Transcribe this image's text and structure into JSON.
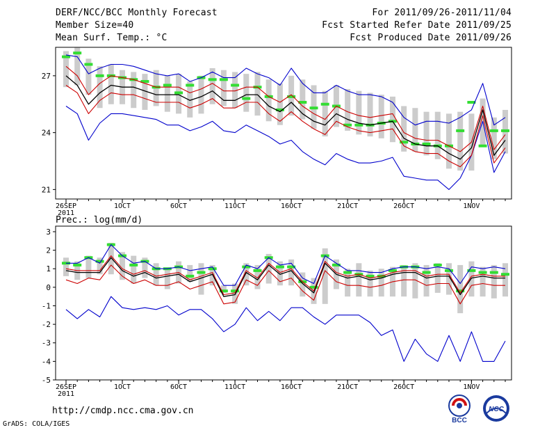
{
  "header": {
    "title": "DERF/NCC/BCC Monthly Forecast",
    "member_size": "Member Size=40",
    "variable": "Mean Surf. Temp.: °C",
    "forecast_period": "For 2011/09/26-2011/11/04",
    "fcst_started": "Fcst Started Refer Date 2011/09/25",
    "fcst_produced": "Fcst Produced Date 2011/09/26"
  },
  "footer": {
    "url": "http://cmdp.ncc.cma.gov.cn",
    "credit": "GrADS: COLA/IGES",
    "logo_bcc": "BCC",
    "logo_ncc": "NCC"
  },
  "colors": {
    "box": "#cccccc",
    "green": "#33dd33",
    "mean": "#000000",
    "inner": "#cc0000",
    "outer": "#0000cc"
  },
  "chart_data": [
    {
      "type": "line",
      "title": "Mean Surf. Temp.: °C",
      "x_tick_labels": [
        "26SEP",
        "1OCT",
        "6OCT",
        "11OCT",
        "16OCT",
        "21OCT",
        "26OCT",
        "1NOV"
      ],
      "x_tick_days": [
        1,
        6,
        11,
        16,
        21,
        26,
        31,
        37
      ],
      "year_label": "2011",
      "xlim": [
        1,
        40
      ],
      "ylim": [
        20.5,
        28.5
      ],
      "y_ticks": [
        21,
        24,
        27
      ],
      "series": [
        {
          "name": "box_top",
          "values": [
            28.3,
            28.5,
            27.9,
            27.5,
            27.6,
            27.3,
            27.2,
            27.1,
            27.3,
            27.0,
            27.1,
            26.7,
            27.0,
            27.4,
            27.3,
            27.2,
            27.1,
            27.2,
            26.8,
            26.6,
            27.0,
            26.8,
            26.5,
            26.2,
            26.5,
            26.3,
            26.2,
            26.1,
            26.0,
            25.9,
            25.4,
            25.3,
            25.1,
            25.1,
            25.0,
            25.1,
            25.0,
            25.8,
            24.8,
            25.2
          ]
        },
        {
          "name": "box_bottom",
          "values": [
            26.4,
            26.5,
            26.0,
            25.3,
            25.5,
            25.5,
            25.3,
            25.2,
            25.4,
            25.1,
            25.0,
            24.8,
            25.0,
            25.5,
            25.4,
            25.3,
            25.1,
            24.9,
            24.6,
            24.4,
            24.9,
            24.7,
            24.2,
            23.8,
            24.3,
            24.1,
            23.9,
            23.8,
            23.7,
            23.5,
            23.0,
            23.0,
            22.8,
            22.6,
            22.1,
            22.0,
            22.0,
            23.3,
            22.6,
            22.9
          ]
        },
        {
          "name": "green_marks",
          "values": [
            28.0,
            28.2,
            27.6,
            27.0,
            27.0,
            26.9,
            26.8,
            26.7,
            26.4,
            26.5,
            26.1,
            26.5,
            26.9,
            26.8,
            26.8,
            26.5,
            25.8,
            26.4,
            25.9,
            25.2,
            25.9,
            25.6,
            25.3,
            25.5,
            25.4,
            24.4,
            24.4,
            24.4,
            24.5,
            24.6,
            23.5,
            23.4,
            23.4,
            23.3,
            23.3,
            24.1,
            25.6,
            23.3,
            24.1,
            24.1
          ]
        },
        {
          "name": "ensemble_mean",
          "values": [
            27.0,
            26.5,
            25.5,
            26.1,
            26.5,
            26.4,
            26.4,
            26.2,
            26.0,
            26.0,
            26.0,
            25.7,
            25.9,
            26.2,
            25.7,
            25.7,
            26.0,
            26.0,
            25.4,
            25.1,
            25.6,
            25.0,
            24.6,
            24.4,
            25.0,
            24.7,
            24.5,
            24.4,
            24.5,
            24.6,
            23.7,
            23.4,
            23.3,
            23.3,
            22.9,
            22.6,
            23.2,
            25.2,
            22.8,
            23.6
          ]
        },
        {
          "name": "upper_inner",
          "values": [
            27.5,
            27.0,
            26.0,
            26.6,
            27.0,
            26.9,
            26.8,
            26.6,
            26.4,
            26.4,
            26.4,
            26.1,
            26.3,
            26.6,
            26.2,
            26.2,
            26.4,
            26.4,
            25.9,
            25.6,
            26.0,
            25.4,
            25.0,
            24.7,
            25.4,
            25.1,
            24.9,
            24.8,
            24.9,
            25.0,
            24.0,
            23.7,
            23.6,
            23.6,
            23.3,
            23.0,
            23.5,
            25.4,
            23.1,
            23.9
          ]
        },
        {
          "name": "lower_inner",
          "values": [
            26.5,
            26.1,
            25.0,
            25.7,
            26.1,
            26.0,
            26.0,
            25.8,
            25.6,
            25.6,
            25.6,
            25.3,
            25.5,
            25.8,
            25.3,
            25.3,
            25.6,
            25.6,
            25.0,
            24.6,
            25.1,
            24.6,
            24.2,
            23.9,
            24.6,
            24.3,
            24.1,
            24.0,
            24.1,
            24.2,
            23.3,
            23.0,
            22.9,
            22.9,
            22.5,
            22.2,
            22.8,
            24.9,
            22.4,
            23.2
          ]
        },
        {
          "name": "upper_outer",
          "values": [
            28.1,
            28.0,
            27.1,
            27.4,
            27.6,
            27.6,
            27.5,
            27.3,
            27.1,
            27.0,
            27.1,
            26.7,
            26.9,
            27.2,
            26.9,
            26.9,
            27.4,
            27.1,
            26.9,
            26.5,
            27.4,
            26.6,
            26.1,
            26.1,
            26.5,
            26.2,
            26.0,
            26.0,
            25.9,
            25.6,
            24.8,
            24.4,
            24.6,
            24.6,
            24.5,
            24.8,
            25.2,
            26.6,
            24.4,
            24.8
          ]
        },
        {
          "name": "lower_outer",
          "values": [
            25.4,
            25.0,
            23.6,
            24.5,
            25.0,
            25.0,
            24.9,
            24.8,
            24.7,
            24.4,
            24.4,
            24.1,
            24.3,
            24.6,
            24.1,
            24.0,
            24.4,
            24.1,
            23.8,
            23.4,
            23.6,
            23.0,
            22.6,
            22.3,
            22.9,
            22.6,
            22.4,
            22.4,
            22.5,
            22.7,
            21.7,
            21.6,
            21.5,
            21.5,
            21.0,
            21.6,
            22.8,
            24.6,
            21.9,
            23.0
          ]
        }
      ]
    },
    {
      "type": "line",
      "title": "Prec.: log(mm/d)",
      "x_tick_labels": [
        "26SEP",
        "1OCT",
        "6OCT",
        "11OCT",
        "16OCT",
        "21OCT",
        "26OCT",
        "1NOV"
      ],
      "x_tick_days": [
        1,
        6,
        11,
        16,
        21,
        26,
        31,
        37
      ],
      "year_label": "2011",
      "xlim": [
        1,
        40
      ],
      "ylim": [
        -5,
        3.3
      ],
      "y_ticks": [
        -5,
        -4,
        -3,
        -2,
        -1,
        0,
        1,
        2,
        3
      ],
      "series": [
        {
          "name": "box_top",
          "values": [
            1.6,
            1.4,
            1.7,
            1.6,
            2.4,
            1.9,
            1.7,
            1.6,
            1.3,
            1.0,
            1.4,
            1.2,
            1.3,
            1.2,
            0.1,
            0.2,
            1.3,
            1.2,
            1.8,
            1.4,
            1.5,
            0.8,
            0.5,
            2.1,
            1.5,
            1.0,
            1.3,
            0.9,
            1.0,
            1.1,
            1.2,
            1.3,
            1.2,
            1.3,
            1.3,
            1.2,
            1.4,
            1.1,
            1.2,
            1.3
          ]
        },
        {
          "name": "box_bottom",
          "values": [
            0.6,
            0.4,
            0.5,
            0.7,
            0.7,
            0.4,
            0.2,
            0.5,
            0.1,
            -0.1,
            0.2,
            0.3,
            -0.4,
            0.1,
            -0.3,
            -0.9,
            0.1,
            -0.1,
            0.2,
            0.1,
            0.1,
            -0.5,
            -0.9,
            -0.9,
            -0.1,
            -0.5,
            -0.5,
            -0.5,
            -0.5,
            -0.5,
            -0.5,
            -0.6,
            -0.5,
            -0.3,
            -0.4,
            -1.4,
            -0.5,
            -0.5,
            -0.6,
            -0.5
          ]
        },
        {
          "name": "green_marks",
          "values": [
            1.3,
            1.2,
            1.6,
            1.4,
            2.3,
            1.7,
            1.2,
            1.4,
            1.0,
            1.0,
            1.1,
            0.6,
            0.8,
            1.0,
            -0.2,
            -0.2,
            1.1,
            0.9,
            1.6,
            1.1,
            1.1,
            0.3,
            0.0,
            1.7,
            1.2,
            0.8,
            0.7,
            0.6,
            0.6,
            0.9,
            1.1,
            1.1,
            0.8,
            1.2,
            0.9,
            -0.2,
            0.9,
            0.8,
            0.8,
            0.7
          ]
        },
        {
          "name": "ensemble_mean",
          "values": [
            0.9,
            0.8,
            0.8,
            0.8,
            1.6,
            0.9,
            0.6,
            0.8,
            0.5,
            0.6,
            0.7,
            0.3,
            0.5,
            0.7,
            -0.5,
            -0.4,
            0.8,
            0.4,
            1.2,
            0.7,
            0.9,
            0.2,
            -0.3,
            1.3,
            0.7,
            0.5,
            0.6,
            0.4,
            0.5,
            0.7,
            0.8,
            0.8,
            0.5,
            0.6,
            0.6,
            -0.4,
            0.5,
            0.6,
            0.5,
            0.5
          ]
        },
        {
          "name": "upper_inner",
          "values": [
            1.0,
            0.9,
            0.9,
            0.9,
            1.7,
            1.0,
            0.7,
            0.9,
            0.6,
            0.7,
            0.8,
            0.4,
            0.6,
            0.8,
            -0.4,
            -0.3,
            0.9,
            0.5,
            1.3,
            0.8,
            1.0,
            0.3,
            -0.2,
            1.4,
            0.8,
            0.6,
            0.7,
            0.5,
            0.6,
            0.8,
            0.9,
            0.9,
            0.6,
            0.7,
            0.7,
            -0.3,
            0.6,
            0.7,
            0.6,
            0.6
          ]
        },
        {
          "name": "lower_inner",
          "values": [
            0.4,
            0.2,
            0.5,
            0.4,
            1.2,
            0.6,
            0.2,
            0.4,
            0.1,
            0.1,
            0.3,
            -0.1,
            0.1,
            0.3,
            -0.9,
            -0.8,
            0.4,
            0.1,
            0.9,
            0.3,
            0.5,
            -0.2,
            -0.7,
            0.9,
            0.3,
            0.1,
            0.1,
            0.0,
            0.1,
            0.3,
            0.4,
            0.4,
            0.1,
            0.2,
            0.2,
            -0.9,
            0.1,
            0.2,
            0.1,
            0.1
          ]
        },
        {
          "name": "upper_outer",
          "values": [
            1.3,
            1.3,
            1.6,
            1.3,
            2.3,
            1.7,
            1.3,
            1.4,
            1.0,
            1.0,
            1.1,
            0.9,
            1.0,
            1.1,
            0.1,
            0.1,
            1.2,
            1.0,
            1.6,
            1.2,
            1.3,
            0.5,
            0.2,
            1.7,
            1.3,
            0.9,
            0.9,
            0.8,
            0.8,
            1.0,
            1.1,
            1.1,
            1.0,
            1.1,
            1.0,
            0.2,
            1.1,
            1.0,
            1.1,
            1.0
          ]
        },
        {
          "name": "lower_outer",
          "values": [
            -1.2,
            -1.7,
            -1.2,
            -1.6,
            -0.5,
            -1.1,
            -1.2,
            -1.1,
            -1.2,
            -1.0,
            -1.5,
            -1.2,
            -1.2,
            -1.7,
            -2.4,
            -2.0,
            -1.1,
            -1.8,
            -1.3,
            -1.8,
            -1.1,
            -1.1,
            -1.6,
            -2.0,
            -1.5,
            -1.5,
            -1.5,
            -1.9,
            -2.6,
            -2.3,
            -4.0,
            -2.8,
            -3.6,
            -4.0,
            -2.6,
            -4.0,
            -2.4,
            -4.0,
            -4.0,
            -2.9
          ]
        }
      ]
    }
  ]
}
